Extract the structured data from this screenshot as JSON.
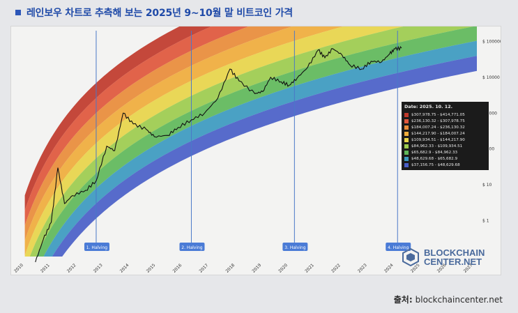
{
  "title": "레인보우 차트로 추측해 보는 2025년 9~10월 말 비트코인 가격",
  "source": {
    "label": "출처:",
    "value": "blockchaincenter.net"
  },
  "brand": {
    "line1": "BLOCKCHAIN",
    "line2": "CENTER.NET"
  },
  "colors": {
    "title": "#1f4aa8",
    "halving_line": "#4a78c8",
    "halving_badge": "#4a7bd6",
    "price_line": "#111111",
    "tooltip_bg": "#1b1b1b"
  },
  "tooltip": {
    "date": "Date: 2025. 10. 12.",
    "rows": [
      {
        "range": "$307,978.75 - $414,771.05",
        "color": "#c0392b"
      },
      {
        "range": "$236,130.32 - $307,978.75",
        "color": "#e0573c"
      },
      {
        "range": "$184,007.24 - $236,130.32",
        "color": "#e98c3a"
      },
      {
        "range": "$144,217.90 - $184,007.24",
        "color": "#f0ad3c"
      },
      {
        "range": "$109,934.51 - $144,217.90",
        "color": "#e8d54a"
      },
      {
        "range": "$84,962.33 - $109,934.51",
        "color": "#9dcc4e"
      },
      {
        "range": "$65,682.9 - $84,962.33",
        "color": "#5fb85a"
      },
      {
        "range": "$48,629.68 - $65,682.9",
        "color": "#3c9ac0"
      },
      {
        "range": "$37,156.75 - $48,629.68",
        "color": "#4a5fc8"
      }
    ]
  },
  "chart_data": {
    "type": "area",
    "title": "",
    "xlabel": "",
    "ylabel": "",
    "y_scale": "log",
    "ylim": [
      0.1,
      200000
    ],
    "x_range": [
      2010,
      2027.3
    ],
    "x_tick_labels": [
      "2010",
      "2011",
      "2012",
      "2013",
      "2014",
      "2015",
      "2016",
      "2017",
      "2018",
      "2019",
      "2020",
      "2021",
      "2022",
      "2023",
      "2024",
      "2025",
      "2026",
      "2027"
    ],
    "y_tick_labels": [
      "$ 1",
      "$ 10",
      "$ 100",
      "$ 1000",
      "$ 10000",
      "$ 100000"
    ],
    "y_tick_values": [
      1,
      10,
      100,
      1000,
      10000,
      100000
    ],
    "band_colors": [
      "#c0392b",
      "#e0573c",
      "#e98c3a",
      "#f0ad3c",
      "#e8d54a",
      "#9dcc4e",
      "#5fb85a",
      "#3c9ac0",
      "#4a5fc8"
    ],
    "halvings": [
      {
        "label": "1. Halving",
        "x": 2012.9
      },
      {
        "label": "2. Halving",
        "x": 2016.5
      },
      {
        "label": "3. Halving",
        "x": 2020.4
      },
      {
        "label": "4. Halving",
        "x": 2024.3
      }
    ],
    "series": [
      {
        "x": [
          2010.6,
          2010.9,
          2011.2,
          2011.45,
          2011.7,
          2012.0,
          2012.5,
          2012.9,
          2013.3,
          2013.6,
          2013.92,
          2014.3,
          2014.8,
          2015.1,
          2015.6,
          2016.0,
          2016.5,
          2017.0,
          2017.5,
          2017.96,
          2018.3,
          2018.9,
          2019.2,
          2019.5,
          2019.9,
          2020.2,
          2020.5,
          2020.9,
          2021.3,
          2021.55,
          2021.85,
          2022.2,
          2022.5,
          2022.95,
          2023.3,
          2023.7,
          2024.0,
          2024.2,
          2024.45
        ],
        "y": [
          0.07,
          0.3,
          0.9,
          30,
          3,
          5,
          7,
          13,
          120,
          90,
          1000,
          500,
          350,
          220,
          240,
          400,
          650,
          1000,
          2600,
          17000,
          8000,
          3500,
          4000,
          10000,
          7500,
          6000,
          9500,
          19000,
          58000,
          35000,
          63000,
          42000,
          22000,
          17000,
          28000,
          27000,
          45000,
          62000,
          65000
        ]
      }
    ]
  }
}
